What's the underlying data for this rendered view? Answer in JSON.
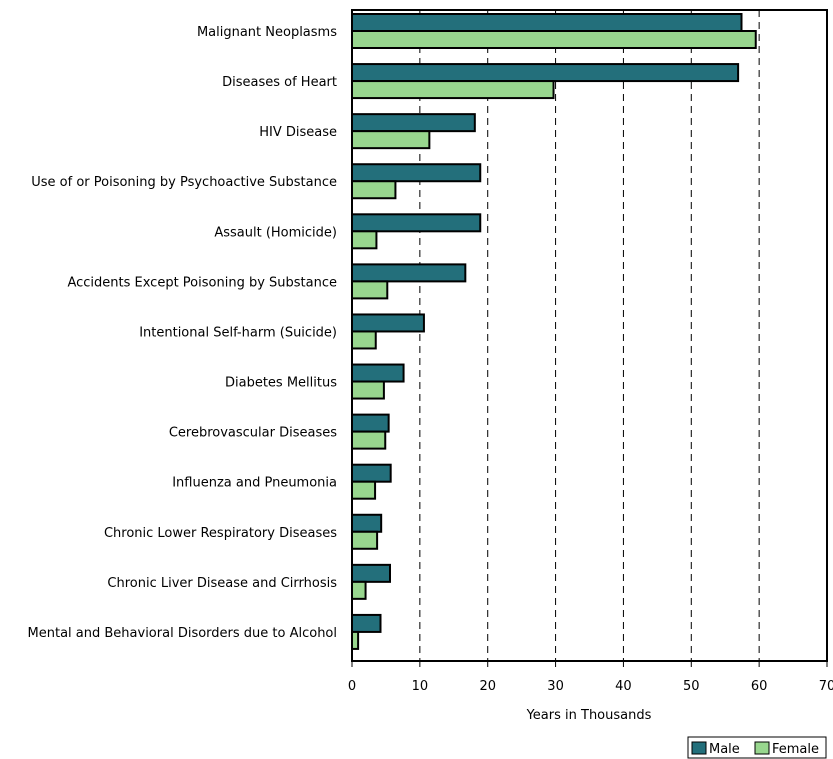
{
  "chart_data": {
    "type": "bar",
    "orientation": "horizontal",
    "title": "",
    "xlabel": "Years in Thousands",
    "ylabel": "",
    "xlim": [
      0,
      70
    ],
    "x_ticks": [
      0,
      10,
      20,
      30,
      40,
      50,
      60,
      70
    ],
    "grid": "vertical dashed",
    "legend_position": "bottom-right",
    "categories": [
      "Malignant Neoplasms",
      "Diseases of Heart",
      "HIV Disease",
      "Use of or Poisoning by Psychoactive Substance",
      "Assault (Homicide)",
      "Accidents Except Poisoning by Substance",
      "Intentional Self-harm (Suicide)",
      "Diabetes Mellitus",
      "Cerebrovascular Diseases",
      "Influenza and Pneumonia",
      "Chronic Lower Respiratory Diseases",
      "Chronic Liver Disease and Cirrhosis",
      "Mental and Behavioral Disorders due to Alcohol"
    ],
    "series": [
      {
        "name": "Male",
        "color": "#236f7b",
        "values": [
          57.4,
          56.9,
          18.1,
          18.9,
          18.9,
          16.7,
          10.6,
          7.6,
          5.4,
          5.7,
          4.3,
          5.6,
          4.2
        ]
      },
      {
        "name": "Female",
        "color": "#98d68e",
        "values": [
          59.5,
          29.7,
          11.4,
          6.4,
          3.6,
          5.2,
          3.5,
          4.7,
          4.9,
          3.4,
          3.7,
          2.0,
          0.9
        ]
      }
    ]
  }
}
